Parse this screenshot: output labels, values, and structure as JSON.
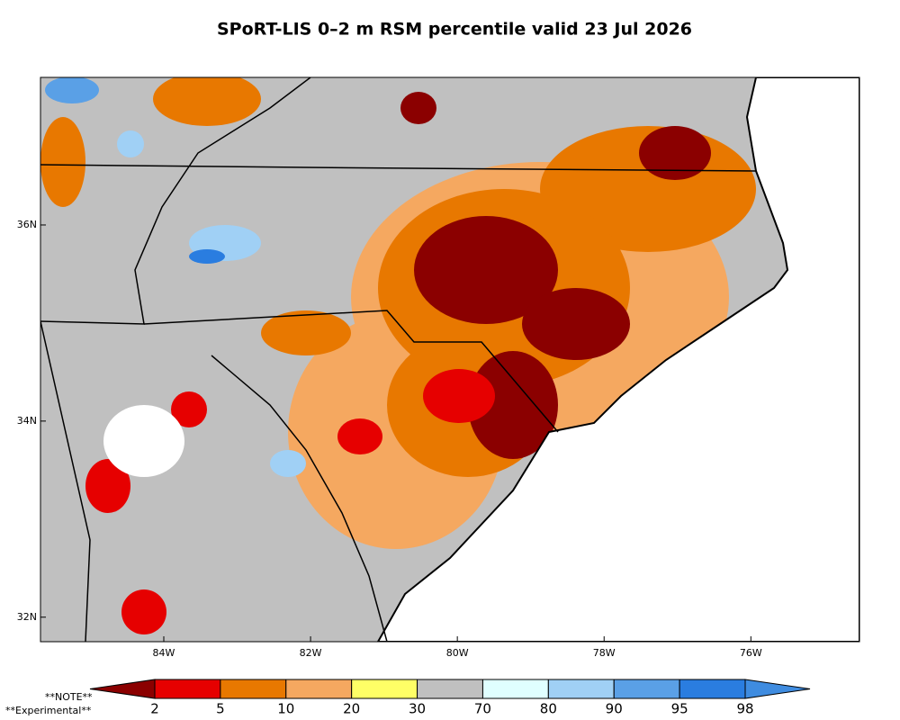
{
  "title": "SPoRT-LIS 0–2 m RSM percentile valid 23 Jul 2026",
  "map": {
    "lon_range": [
      -85.68,
      -74.52
    ],
    "lat_range": [
      31.75,
      37.505
    ],
    "lon_ticks": [
      {
        "value": -84,
        "label": "84W"
      },
      {
        "value": -82,
        "label": "82W"
      },
      {
        "value": -80,
        "label": "80W"
      },
      {
        "value": -78,
        "label": "78W"
      },
      {
        "value": -76,
        "label": "76W"
      }
    ],
    "lat_ticks": [
      {
        "value": 36,
        "label": "36N"
      },
      {
        "value": 34,
        "label": "34N"
      },
      {
        "value": 32,
        "label": "32N"
      }
    ]
  },
  "colorbar": {
    "levels": [
      2,
      5,
      10,
      20,
      30,
      70,
      80,
      90,
      95,
      98
    ],
    "colors": [
      "#8b0000",
      "#e60000",
      "#e87800",
      "#f5a860",
      "#ffff66",
      "#c0c0c0",
      "#e0ffff",
      "#a0d0f5",
      "#5aa0e6",
      "#2a7de0",
      "#3f8ce0"
    ]
  },
  "notes": [
    "**NOTE**",
    "**Experimental**"
  ]
}
